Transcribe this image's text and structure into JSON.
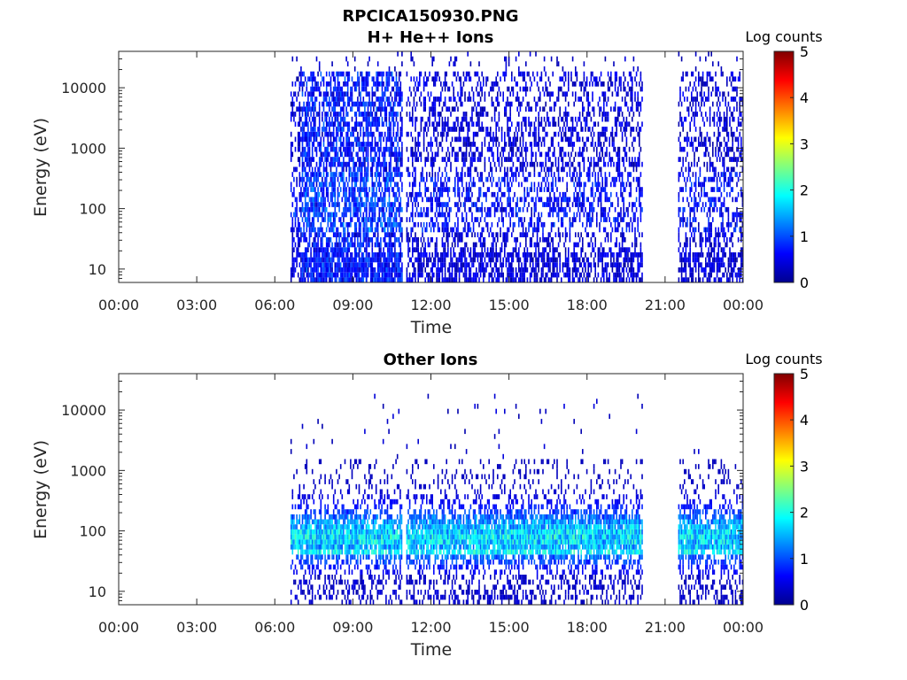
{
  "figure": {
    "title_line1": "RPCICA150930.PNG"
  },
  "chart_data": [
    {
      "type": "heatmap",
      "title": "H+ He++ Ions",
      "xlabel": "Time",
      "ylabel": "Energy (eV)",
      "x_tick_labels": [
        "00:00",
        "03:00",
        "06:00",
        "09:00",
        "12:00",
        "15:00",
        "18:00",
        "21:00",
        "00:00"
      ],
      "x_range_hours": [
        0,
        24
      ],
      "y_scale": "log",
      "y_range": [
        6,
        40000
      ],
      "y_ticks": [
        10,
        100,
        1000,
        10000
      ],
      "y_tick_labels": [
        "10",
        "100",
        "1000",
        "10000"
      ],
      "colorbar": {
        "label": "Log counts",
        "range": [
          0,
          5
        ],
        "ticks": [
          "0",
          "1",
          "2",
          "3",
          "4",
          "5"
        ],
        "colormap": "jet"
      },
      "data_intervals_hours": [
        [
          6.6,
          9.5
        ],
        [
          9.5,
          10.9
        ],
        [
          11.05,
          20.1
        ],
        [
          21.5,
          24.0
        ]
      ],
      "gaps_hours": [
        [
          0,
          6.6
        ],
        [
          20.1,
          21.5
        ]
      ],
      "energy_extent_eV": [
        6,
        18000
      ],
      "dominant_log_counts": [
        0,
        1.2
      ],
      "notes": "Broadband low-level counts (log counts ~0-1.2), strongest between 07:00 and 09:30"
    },
    {
      "type": "heatmap",
      "title": "Other Ions",
      "xlabel": "Time",
      "ylabel": "Energy (eV)",
      "x_tick_labels": [
        "00:00",
        "03:00",
        "06:00",
        "09:00",
        "12:00",
        "15:00",
        "18:00",
        "21:00",
        "00:00"
      ],
      "x_range_hours": [
        0,
        24
      ],
      "y_scale": "log",
      "y_range": [
        6,
        40000
      ],
      "y_ticks": [
        10,
        100,
        1000,
        10000
      ],
      "y_tick_labels": [
        "10",
        "100",
        "1000",
        "10000"
      ],
      "colorbar": {
        "label": "Log counts",
        "range": [
          0,
          5
        ],
        "ticks": [
          "0",
          "1",
          "2",
          "3",
          "4",
          "5"
        ],
        "colormap": "jet"
      },
      "data_intervals_hours": [
        [
          6.6,
          10.9
        ],
        [
          11.05,
          20.1
        ],
        [
          21.5,
          24.0
        ]
      ],
      "gaps_hours": [
        [
          0,
          6.6
        ],
        [
          20.1,
          21.5
        ]
      ],
      "energy_extent_eV": [
        6,
        1500
      ],
      "peak_band_eV": [
        30,
        300
      ],
      "peak_energy_eV": 40,
      "dominant_log_counts": [
        0.5,
        2.0
      ],
      "notes": "Band of counts 20-600 eV with values up to ~2 log counts near 40-150 eV; sparse points above 1000 eV"
    }
  ]
}
